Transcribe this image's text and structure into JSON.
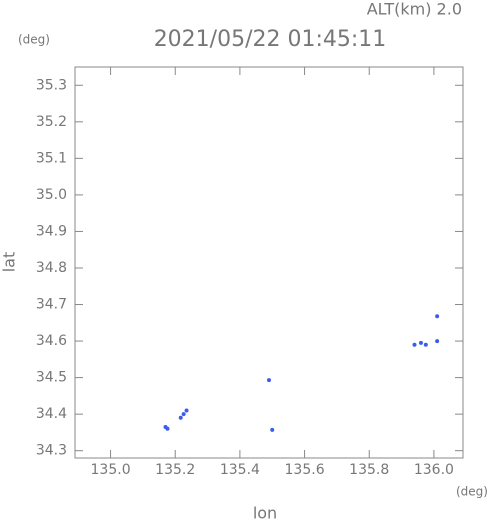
{
  "chart_data": {
    "type": "scatter",
    "title": "2021/05/22 01:45:11",
    "annotation": "ALT(km) 2.0",
    "y_unit": "(deg)",
    "x_unit": "(deg)",
    "xlabel": "lon",
    "ylabel": "lat",
    "color": "#3a5cf0",
    "xlim": [
      134.89,
      136.09
    ],
    "ylim": [
      34.28,
      35.35
    ],
    "xticks": [
      {
        "value": 135,
        "label": "135.0"
      },
      135.2,
      135.4,
      135.6,
      135.8,
      {
        "value": 136,
        "label": "136.0"
      }
    ],
    "yticks": [
      34.3,
      34.4,
      34.5,
      34.6,
      34.7,
      34.8,
      34.9,
      {
        "value": 35,
        "label": "35.0"
      },
      35.1,
      35.2,
      35.3
    ],
    "x": [
      135.17,
      135.176,
      135.217,
      135.226,
      135.235,
      135.49,
      135.5,
      135.94,
      135.96,
      135.975,
      136.01,
      136.01
    ],
    "y": [
      34.365,
      34.36,
      34.39,
      34.4,
      34.41,
      34.493,
      34.357,
      34.59,
      34.595,
      34.59,
      34.6,
      34.668
    ]
  }
}
